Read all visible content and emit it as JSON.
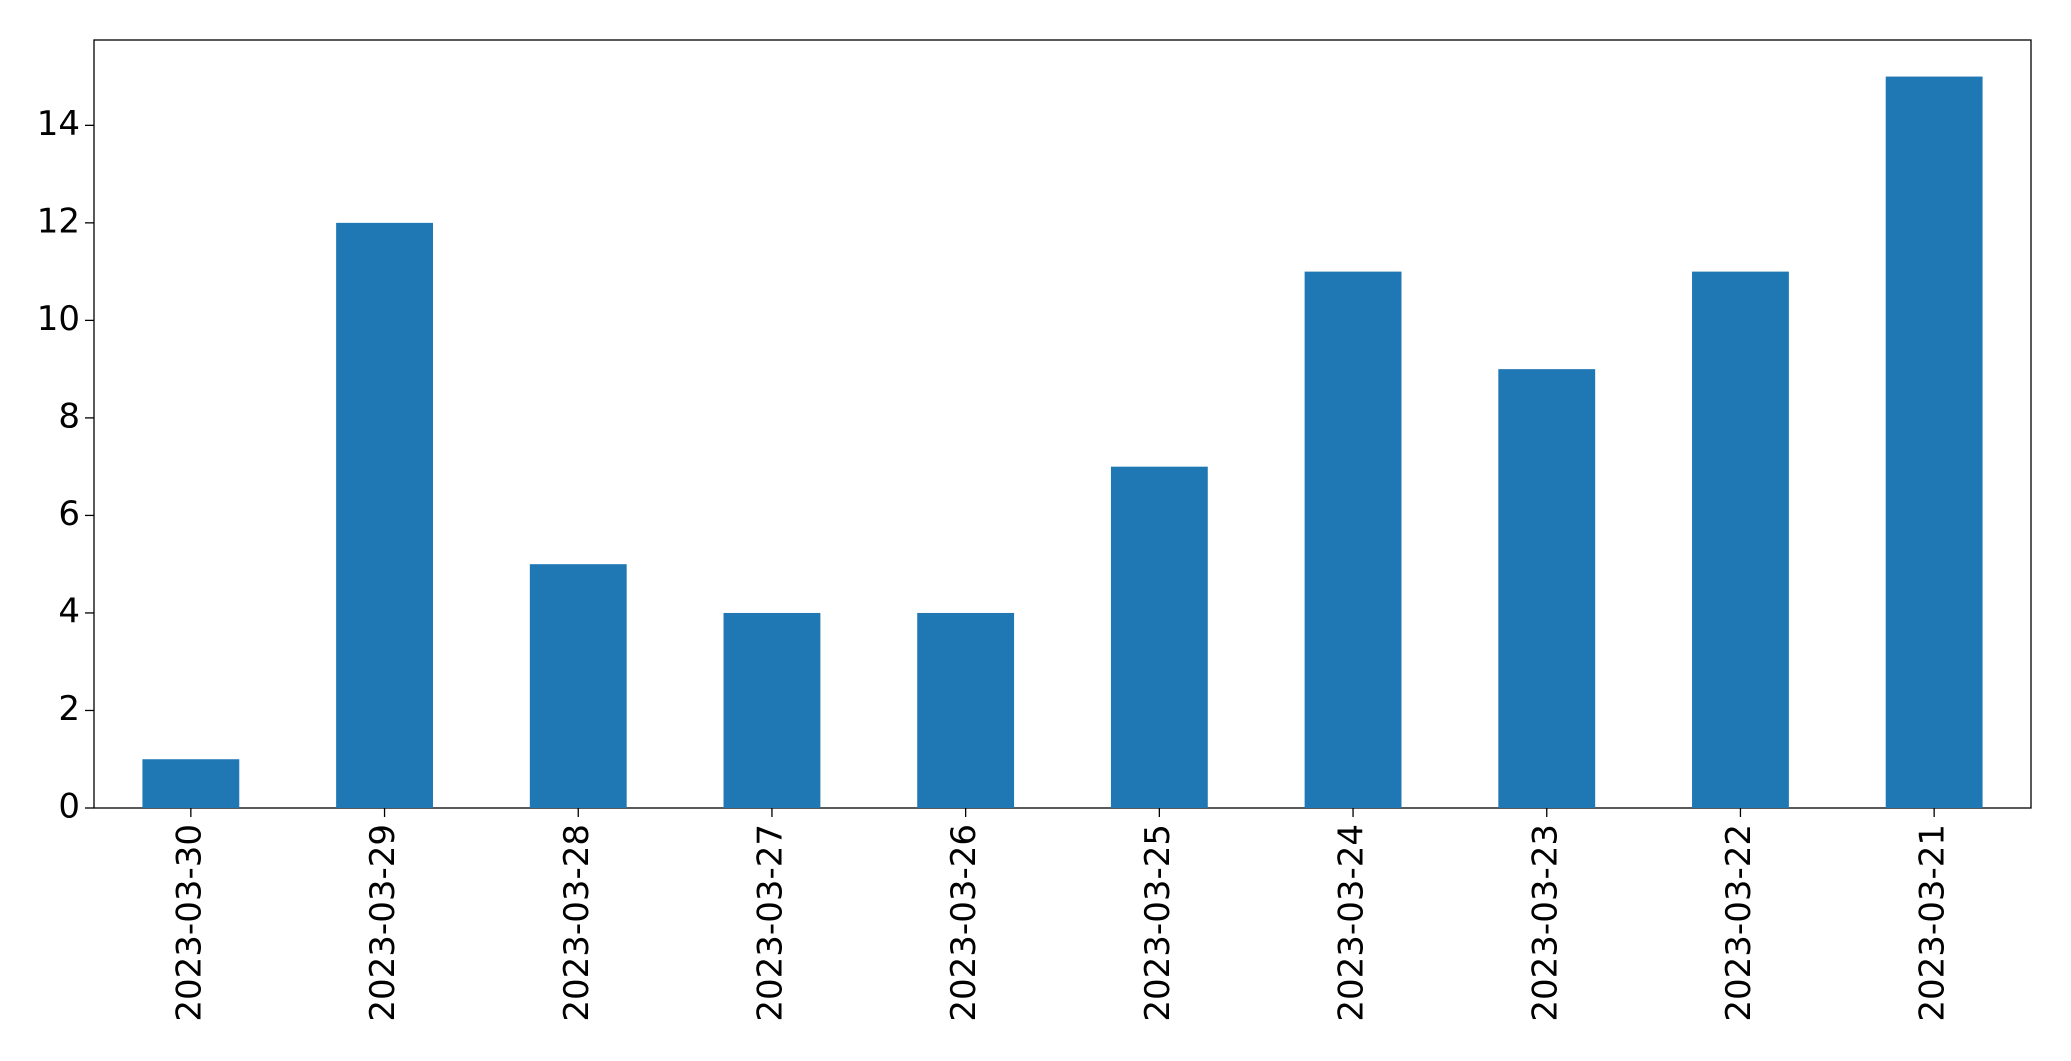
{
  "chart_data": {
    "type": "bar",
    "categories": [
      "2023-03-30",
      "2023-03-29",
      "2023-03-28",
      "2023-03-27",
      "2023-03-26",
      "2023-03-25",
      "2023-03-24",
      "2023-03-23",
      "2023-03-22",
      "2023-03-21"
    ],
    "values": [
      1,
      12,
      5,
      4,
      4,
      7,
      11,
      9,
      11,
      15
    ],
    "color": "#1f77b4",
    "ylim": [
      0,
      15.75
    ],
    "yticks": [
      0,
      2,
      4,
      6,
      8,
      10,
      12,
      14
    ],
    "grid": false
  }
}
